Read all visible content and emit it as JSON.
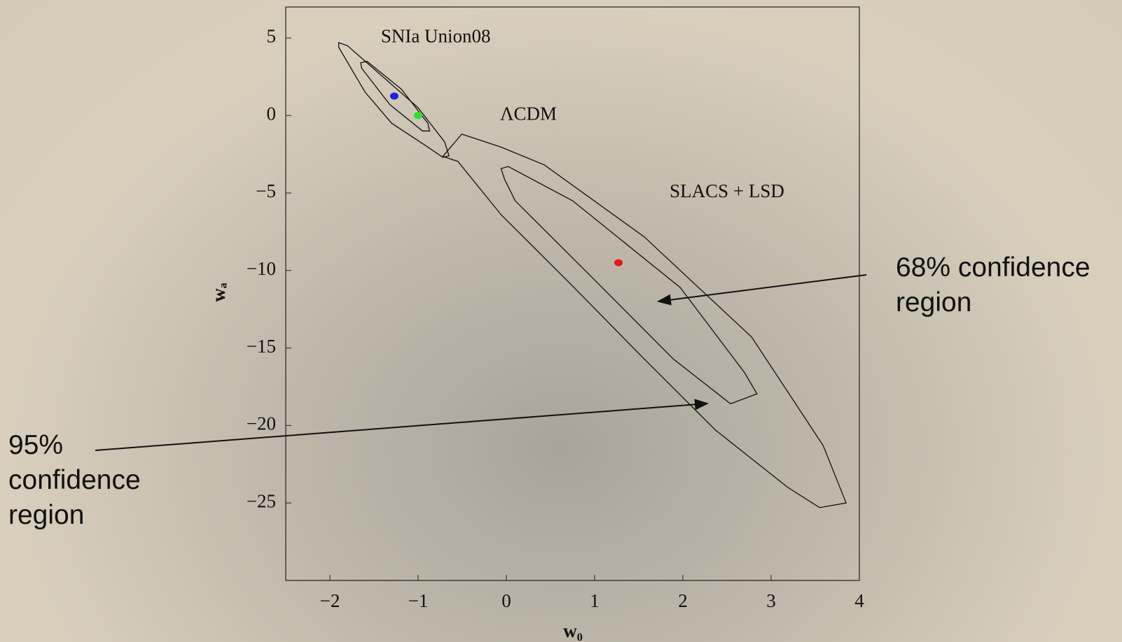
{
  "chart_data": {
    "type": "contour",
    "xlabel": "w₀",
    "ylabel": "wₐ",
    "xlim": [
      -2.5,
      4
    ],
    "ylim": [
      -30,
      7
    ],
    "xticks": [
      {
        "value": -2,
        "label": "−2"
      },
      {
        "value": -1,
        "label": "−1"
      },
      0,
      1,
      2,
      3,
      4
    ],
    "yticks": [
      5,
      0,
      {
        "value": -5,
        "label": "−5"
      },
      {
        "value": -10,
        "label": "−10"
      },
      {
        "value": -15,
        "label": "−15"
      },
      {
        "value": -20,
        "label": "−20"
      },
      {
        "value": -25,
        "label": "−25"
      }
    ],
    "labels": [
      {
        "text": "SNIa Union08",
        "x": -0.8,
        "y": 5
      },
      {
        "text": "ΛCDM",
        "x": 0.25,
        "y": 0
      },
      {
        "text": "SLACS + LSD",
        "x": 2.5,
        "y": -5
      }
    ],
    "contours": [
      {
        "x": [
          -1.9,
          -1.8,
          -1.4,
          -1.0,
          -0.7,
          -0.65,
          -0.72,
          -0.9,
          -1.3,
          -1.6,
          -1.9
        ],
        "y": [
          4.7,
          4.5,
          2.5,
          0.5,
          -1.7,
          -2.6,
          -2.7,
          -2.0,
          -0.5,
          1.5,
          4.4
        ]
      },
      {
        "x": [
          -1.65,
          -1.58,
          -1.19,
          -0.89,
          -0.87,
          -0.95,
          -1.32,
          -1.64
        ],
        "y": [
          3.4,
          3.5,
          1.7,
          -0.5,
          -1.0,
          -1.0,
          0.7,
          3.05
        ]
      },
      {
        "x": [
          -0.72,
          -0.505,
          -0.06,
          0.43,
          1.56,
          2.78,
          3.59,
          3.85,
          3.55,
          3.19,
          2.37,
          1.56,
          0.75,
          -0.06,
          -0.55
        ],
        "y": [
          -2.64,
          -1.2,
          -2.04,
          -3.19,
          -7.82,
          -14.3,
          -21.3,
          -25.0,
          -25.3,
          -24.0,
          -20.3,
          -15.7,
          -11.0,
          -6.4,
          -2.96
        ]
      },
      {
        "x": [
          -0.06,
          0.02,
          0.75,
          1.97,
          2.7,
          2.84,
          2.54,
          1.89,
          0.91,
          0.1,
          -0.02
        ],
        "y": [
          -3.43,
          -3.29,
          -5.5,
          -11.1,
          -16.6,
          -17.96,
          -18.6,
          -15.7,
          -10.1,
          -5.5,
          -4.12
        ]
      }
    ],
    "points": [
      {
        "x": -1.27,
        "y": 1.25,
        "color": "#1f1fe0"
      },
      {
        "x": -1.0,
        "y": 0,
        "color": "#22e622"
      },
      {
        "x": 1.27,
        "y": -9.5,
        "color": "#e81515"
      }
    ]
  },
  "annotations": [
    "68% confidence region",
    "95% confidence region"
  ]
}
